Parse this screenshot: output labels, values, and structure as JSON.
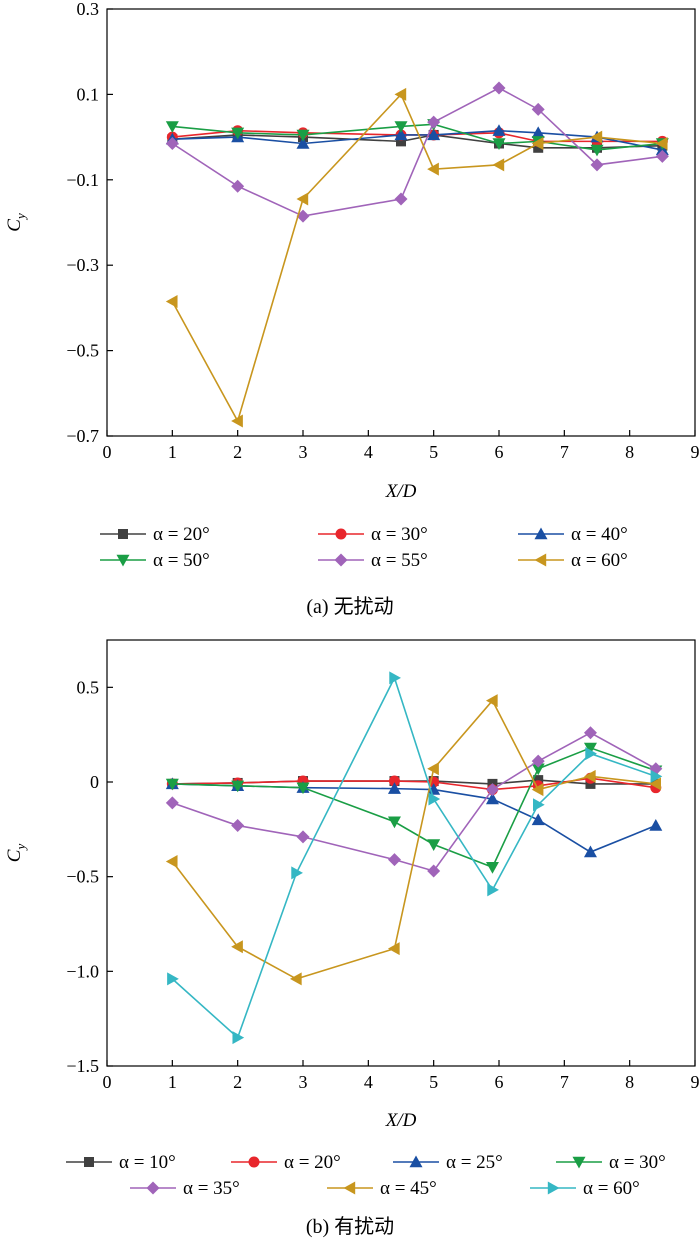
{
  "chart_data": [
    {
      "type": "line",
      "xlabel": "X/D",
      "ylabel_main": "C",
      "ylabel_sub": "y",
      "xlim": [
        0,
        9
      ],
      "ylim": [
        -0.7,
        0.3
      ],
      "xticks": [
        0,
        1,
        2,
        3,
        4,
        5,
        6,
        7,
        8,
        9
      ],
      "xtick_labels": [
        "0",
        "1",
        "2",
        "3",
        "4",
        "5",
        "6",
        "7",
        "8",
        "9"
      ],
      "yticks": [
        -0.7,
        -0.5,
        -0.3,
        -0.1,
        0.1,
        0.3
      ],
      "ytick_labels": [
        "−0.7",
        "−0.5",
        "−0.3",
        "−0.1",
        "0.1",
        "0.3"
      ],
      "grid": false,
      "legend_position": "bottom",
      "caption": "(a) 无扰动",
      "series": [
        {
          "name": "α = 20°",
          "color": "#404040",
          "marker": "square",
          "x": [
            1,
            2,
            3,
            4.5,
            5,
            6,
            6.6,
            7.5,
            8.5
          ],
          "y": [
            -0.005,
            0.005,
            0.0,
            -0.01,
            0.005,
            -0.015,
            -0.025,
            -0.025,
            -0.02
          ]
        },
        {
          "name": "α = 30°",
          "color": "#e8262c",
          "marker": "circle",
          "x": [
            1,
            2,
            3,
            4.5,
            5,
            6,
            6.6,
            7.5,
            8.5
          ],
          "y": [
            0.0,
            0.015,
            0.01,
            0.005,
            0.005,
            0.01,
            -0.01,
            -0.01,
            -0.01
          ]
        },
        {
          "name": "α = 40°",
          "color": "#1a4fa3",
          "marker": "triangle-up",
          "x": [
            1,
            2,
            3,
            4.5,
            5,
            6,
            6.6,
            7.5,
            8.5
          ],
          "y": [
            -0.005,
            0.0,
            -0.015,
            0.005,
            0.005,
            0.015,
            0.01,
            0.0,
            -0.03
          ]
        },
        {
          "name": "α = 50°",
          "color": "#1a9e45",
          "marker": "triangle-down",
          "x": [
            1,
            2,
            3,
            4.5,
            5,
            6,
            6.6,
            7.5,
            8.5
          ],
          "y": [
            0.025,
            0.01,
            0.005,
            0.025,
            0.03,
            -0.015,
            -0.01,
            -0.03,
            -0.015
          ]
        },
        {
          "name": "α = 55°",
          "color": "#a064b9",
          "marker": "diamond",
          "x": [
            1,
            2,
            3,
            4.5,
            5,
            6,
            6.6,
            7.5,
            8.5
          ],
          "y": [
            -0.015,
            -0.115,
            -0.185,
            -0.145,
            0.035,
            0.115,
            0.065,
            -0.065,
            -0.045
          ]
        },
        {
          "name": "α = 60°",
          "color": "#c8961e",
          "marker": "triangle-left",
          "x": [
            1,
            2,
            3,
            4.5,
            5,
            6,
            6.6,
            7.5,
            8.5
          ],
          "y": [
            -0.385,
            -0.665,
            -0.145,
            0.1,
            -0.075,
            -0.065,
            -0.015,
            0.0,
            -0.015
          ]
        }
      ]
    },
    {
      "type": "line",
      "xlabel": "X/D",
      "ylabel_main": "C",
      "ylabel_sub": "y",
      "xlim": [
        0,
        9
      ],
      "ylim": [
        -1.5,
        0.75
      ],
      "xticks": [
        0,
        1,
        2,
        3,
        4,
        5,
        6,
        7,
        8,
        9
      ],
      "xtick_labels": [
        "0",
        "1",
        "2",
        "3",
        "4",
        "5",
        "6",
        "7",
        "8",
        "9"
      ],
      "yticks": [
        -1.5,
        -1.0,
        -0.5,
        0,
        0.5
      ],
      "ytick_labels": [
        "−1.5",
        "−1.0",
        "−0.5",
        "0",
        "0.5"
      ],
      "grid": false,
      "legend_position": "bottom",
      "caption": "(b) 有扰动",
      "series": [
        {
          "name": "α = 10°",
          "color": "#404040",
          "marker": "square",
          "x": [
            1,
            2,
            3,
            4.4,
            5,
            5.9,
            6.6,
            7.4,
            8.4
          ],
          "y": [
            -0.01,
            -0.005,
            0.005,
            0.005,
            0.005,
            -0.01,
            0.01,
            -0.01,
            -0.01
          ]
        },
        {
          "name": "α = 20°",
          "color": "#e8262c",
          "marker": "circle",
          "x": [
            1,
            2,
            3,
            4.4,
            5,
            5.9,
            6.6,
            7.4,
            8.4
          ],
          "y": [
            -0.01,
            -0.005,
            0.005,
            0.005,
            0.0,
            -0.04,
            -0.02,
            0.02,
            -0.03
          ]
        },
        {
          "name": "α = 25°",
          "color": "#1a4fa3",
          "marker": "triangle-up",
          "x": [
            1,
            2,
            3,
            4.4,
            5,
            5.9,
            6.6,
            7.4,
            8.4
          ],
          "y": [
            -0.01,
            -0.02,
            -0.03,
            -0.035,
            -0.04,
            -0.09,
            -0.2,
            -0.37,
            -0.23
          ]
        },
        {
          "name": "α = 30°",
          "color": "#1a9e45",
          "marker": "triangle-down",
          "x": [
            1,
            2,
            3,
            4.4,
            5,
            5.9,
            6.6,
            7.4,
            8.4
          ],
          "y": [
            -0.01,
            -0.02,
            -0.03,
            -0.21,
            -0.33,
            -0.45,
            0.07,
            0.18,
            0.06
          ]
        },
        {
          "name": "α = 35°",
          "color": "#a064b9",
          "marker": "diamond",
          "x": [
            1,
            2,
            3,
            4.4,
            5,
            5.9,
            6.6,
            7.4,
            8.4
          ],
          "y": [
            -0.11,
            -0.23,
            -0.29,
            -0.41,
            -0.47,
            -0.04,
            0.11,
            0.26,
            0.07
          ]
        },
        {
          "name": "α = 45°",
          "color": "#c8961e",
          "marker": "triangle-left",
          "x": [
            1,
            2,
            2.9,
            4.4,
            5,
            5.9,
            6.6,
            7.4,
            8.4
          ],
          "y": [
            -0.42,
            -0.87,
            -1.04,
            -0.88,
            0.07,
            0.43,
            -0.04,
            0.03,
            -0.01
          ]
        },
        {
          "name": "α = 60°",
          "color": "#35b7c4",
          "marker": "triangle-right",
          "x": [
            1,
            2,
            2.9,
            4.4,
            5,
            5.9,
            6.6,
            7.4,
            8.4
          ],
          "y": [
            -1.04,
            -1.35,
            -0.48,
            0.55,
            -0.09,
            -0.57,
            -0.12,
            0.15,
            0.03
          ]
        }
      ]
    }
  ]
}
